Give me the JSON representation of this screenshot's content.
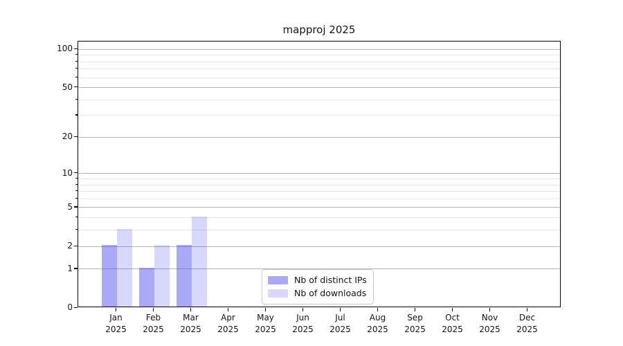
{
  "title": "mapproj 2025",
  "chart_data": {
    "type": "bar",
    "title": "mapproj 2025",
    "x": {
      "months": [
        "Jan",
        "Feb",
        "Mar",
        "Apr",
        "May",
        "Jun",
        "Jul",
        "Aug",
        "Sep",
        "Oct",
        "Nov",
        "Dec"
      ],
      "year": "2025"
    },
    "categories": [
      "Jan 2025",
      "Feb 2025",
      "Mar 2025",
      "Apr 2025",
      "May 2025",
      "Jun 2025",
      "Jul 2025",
      "Aug 2025",
      "Sep 2025",
      "Oct 2025",
      "Nov 2025",
      "Dec 2025"
    ],
    "series": [
      {
        "name": "Nb of distinct IPs",
        "color": "#3c3cf070",
        "values": [
          2,
          1,
          2,
          0,
          0,
          0,
          0,
          0,
          0,
          0,
          0,
          0
        ]
      },
      {
        "name": "Nb of downloads",
        "color": "#3c3cf033",
        "values": [
          3,
          2,
          4,
          0,
          0,
          0,
          0,
          0,
          0,
          0,
          0,
          0
        ]
      }
    ],
    "y_axis": {
      "scale": "log10(value+1)",
      "ticks": [
        0,
        1,
        2,
        5,
        10,
        20,
        50,
        100
      ],
      "minor_ticks": [
        3,
        4,
        6,
        7,
        8,
        9,
        30,
        40,
        60,
        70,
        80,
        90
      ],
      "ymax": 115,
      "major_grid_color": "#b4b4b4",
      "minor_grid_color": "#e7e7e7"
    },
    "legend_position": "lower center",
    "grid": "horizontal"
  }
}
